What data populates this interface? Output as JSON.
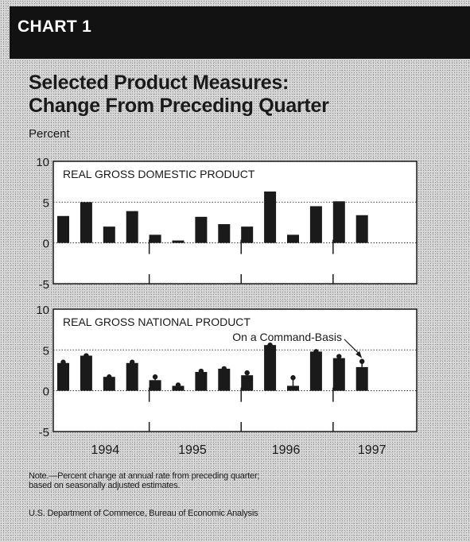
{
  "header": {
    "chart_label": "CHART 1"
  },
  "title_lines": [
    "Selected Product Measures:",
    "Change From Preceding Quarter"
  ],
  "unit_label": "Percent",
  "note_lines": [
    "Note.—Percent change at annual rate from preceding quarter;",
    "based on seasonally adjusted estimates."
  ],
  "source": "U.S. Department of Commerce, Bureau of Economic Analysis",
  "colors": {
    "bar": "#1a1a1a",
    "panel_bg": "#ffffff",
    "header_band": "#121212"
  },
  "chart_data": [
    {
      "type": "bar",
      "title": "REAL GROSS DOMESTIC PRODUCT",
      "ylim": [
        -5,
        10
      ],
      "yticks": [
        10,
        5,
        0,
        -5
      ],
      "years": [
        "1994",
        "1995",
        "1996",
        "1997"
      ],
      "quarters": [
        "1994 Q1",
        "1994 Q2",
        "1994 Q3",
        "1994 Q4",
        "1995 Q1",
        "1995 Q2",
        "1995 Q3",
        "1995 Q4",
        "1996 Q1",
        "1996 Q2",
        "1996 Q3",
        "1996 Q4",
        "1997 Q1",
        "1997 Q2"
      ],
      "values": [
        3.3,
        5.0,
        2.0,
        3.9,
        1.0,
        0.3,
        3.2,
        2.3,
        2.0,
        6.3,
        1.0,
        4.5,
        5.1,
        3.4
      ],
      "grid": true
    },
    {
      "type": "bar",
      "title": "REAL GROSS NATIONAL PRODUCT",
      "ylim": [
        -5,
        10
      ],
      "yticks": [
        10,
        5,
        0,
        -5
      ],
      "years": [
        "1994",
        "1995",
        "1996",
        "1997"
      ],
      "quarters": [
        "1994 Q1",
        "1994 Q2",
        "1994 Q3",
        "1994 Q4",
        "1995 Q1",
        "1995 Q2",
        "1995 Q3",
        "1995 Q4",
        "1996 Q1",
        "1996 Q2",
        "1996 Q3",
        "1996 Q4",
        "1997 Q1",
        "1997 Q2"
      ],
      "values": [
        3.4,
        4.3,
        1.7,
        3.4,
        1.3,
        0.6,
        2.3,
        2.7,
        1.9,
        5.6,
        0.6,
        4.8,
        4.0,
        2.9
      ],
      "series": [
        {
          "name": "On a Command-Basis",
          "values": [
            3.5,
            4.3,
            1.7,
            3.5,
            1.7,
            0.7,
            2.4,
            2.7,
            2.2,
            5.6,
            1.6,
            4.8,
            4.2,
            3.6
          ]
        }
      ],
      "annotation": "On a Command-Basis",
      "grid": true
    }
  ]
}
